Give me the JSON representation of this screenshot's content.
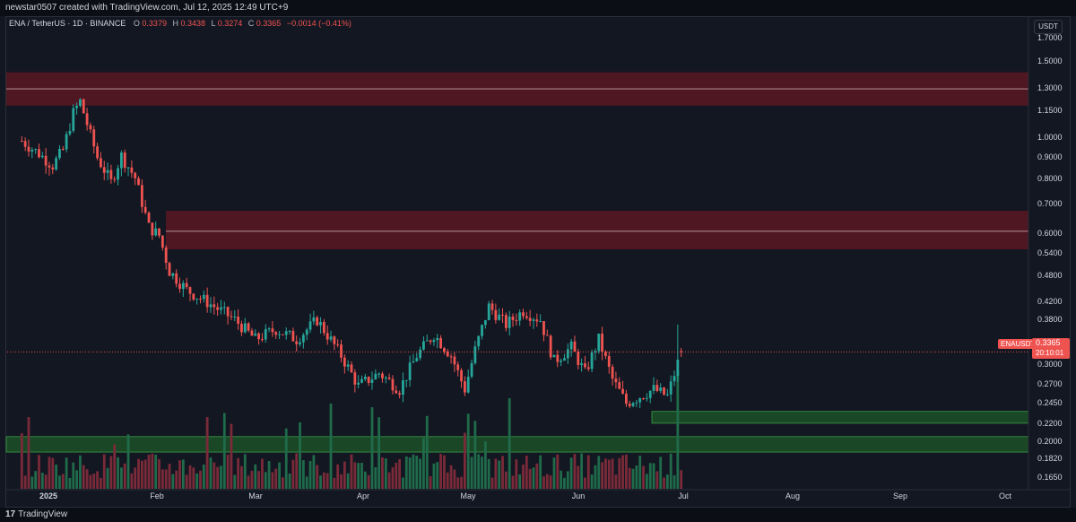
{
  "header": {
    "caption": "newstar0507 created with TradingView.com, Jul 12, 2025 12:49 UTC+9"
  },
  "symbol": {
    "name": "ENA / TetherUS · 1D · BINANCE",
    "open_label": "O",
    "open": "0.3379",
    "high_label": "H",
    "high": "0.3438",
    "low_label": "L",
    "low": "0.3274",
    "close_label": "C",
    "close": "0.3365",
    "change": "−0.0014 (−0.41%)"
  },
  "price_axis": {
    "unit": "USDT",
    "labels": [
      "1.7000",
      "1.5000",
      "1.3000",
      "1.1500",
      "1.0000",
      "0.9000",
      "0.8000",
      "0.7000",
      "0.6000",
      "0.5400",
      "0.4800",
      "0.4200",
      "0.3800",
      "0.3000",
      "0.2700",
      "0.2450",
      "0.2200",
      "0.2000",
      "0.1820",
      "0.1650"
    ]
  },
  "time_axis": {
    "labels": [
      "2025",
      "Feb",
      "Mar",
      "Apr",
      "May",
      "Jun",
      "Jul",
      "Aug",
      "Sep",
      "Oct"
    ]
  },
  "last_price": {
    "symbol": "ENAUSDT",
    "price": "0.3365",
    "countdown": "20:10:01"
  },
  "colors": {
    "up": "#26a69a",
    "down": "#ef5350",
    "zone_red": "#5a1822",
    "zone_green": "#1e5a2a",
    "bg": "#131722"
  },
  "footer": {
    "brand": "TradingView",
    "logo_icon": "tradingview-logo-icon"
  },
  "chart_data": {
    "type": "candlestick",
    "y_scale": "log",
    "ylim": [
      0.16,
      1.8
    ],
    "resistance_zones": [
      {
        "low": 1.27,
        "high": 1.52,
        "mid": 1.39
      },
      {
        "low": 0.585,
        "high": 0.72,
        "mid": 0.645
      }
    ],
    "support_zones": [
      {
        "low": 0.229,
        "high": 0.244
      },
      {
        "low": 0.196,
        "high": 0.213
      }
    ],
    "last_close": 0.3365,
    "close_path": [
      {
        "date": "2025-01-01",
        "close": 1.05
      },
      {
        "date": "2025-01-06",
        "close": 0.98
      },
      {
        "date": "2025-01-10",
        "close": 0.92
      },
      {
        "date": "2025-01-13",
        "close": 1.0
      },
      {
        "date": "2025-01-16",
        "close": 1.22
      },
      {
        "date": "2025-01-18",
        "close": 1.3
      },
      {
        "date": "2025-01-20",
        "close": 1.15
      },
      {
        "date": "2025-01-23",
        "close": 0.96
      },
      {
        "date": "2025-01-27",
        "close": 0.84
      },
      {
        "date": "2025-01-30",
        "close": 0.97
      },
      {
        "date": "2025-02-03",
        "close": 0.86
      },
      {
        "date": "2025-02-07",
        "close": 0.66
      },
      {
        "date": "2025-02-10",
        "close": 0.63
      },
      {
        "date": "2025-02-13",
        "close": 0.52
      },
      {
        "date": "2025-02-18",
        "close": 0.47
      },
      {
        "date": "2025-02-24",
        "close": 0.44
      },
      {
        "date": "2025-03-04",
        "close": 0.4
      },
      {
        "date": "2025-03-10",
        "close": 0.36
      },
      {
        "date": "2025-03-16",
        "close": 0.38
      },
      {
        "date": "2025-03-22",
        "close": 0.36
      },
      {
        "date": "2025-03-28",
        "close": 0.4
      },
      {
        "date": "2025-04-04",
        "close": 0.33
      },
      {
        "date": "2025-04-09",
        "close": 0.28
      },
      {
        "date": "2025-04-15",
        "close": 0.3
      },
      {
        "date": "2025-04-21",
        "close": 0.275
      },
      {
        "date": "2025-04-26",
        "close": 0.33
      },
      {
        "date": "2025-05-01",
        "close": 0.37
      },
      {
        "date": "2025-05-06",
        "close": 0.33
      },
      {
        "date": "2025-05-10",
        "close": 0.275
      },
      {
        "date": "2025-05-13",
        "close": 0.34
      },
      {
        "date": "2025-05-17",
        "close": 0.43
      },
      {
        "date": "2025-05-22",
        "close": 0.39
      },
      {
        "date": "2025-05-27",
        "close": 0.42
      },
      {
        "date": "2025-06-01",
        "close": 0.4
      },
      {
        "date": "2025-06-05",
        "close": 0.32
      },
      {
        "date": "2025-06-10",
        "close": 0.345
      },
      {
        "date": "2025-06-14",
        "close": 0.3
      },
      {
        "date": "2025-06-18",
        "close": 0.36
      },
      {
        "date": "2025-06-22",
        "close": 0.29
      },
      {
        "date": "2025-06-26",
        "close": 0.255
      },
      {
        "date": "2025-06-30",
        "close": 0.265
      },
      {
        "date": "2025-07-04",
        "close": 0.275
      },
      {
        "date": "2025-07-08",
        "close": 0.265
      },
      {
        "date": "2025-07-12",
        "close": 0.3365
      }
    ]
  }
}
